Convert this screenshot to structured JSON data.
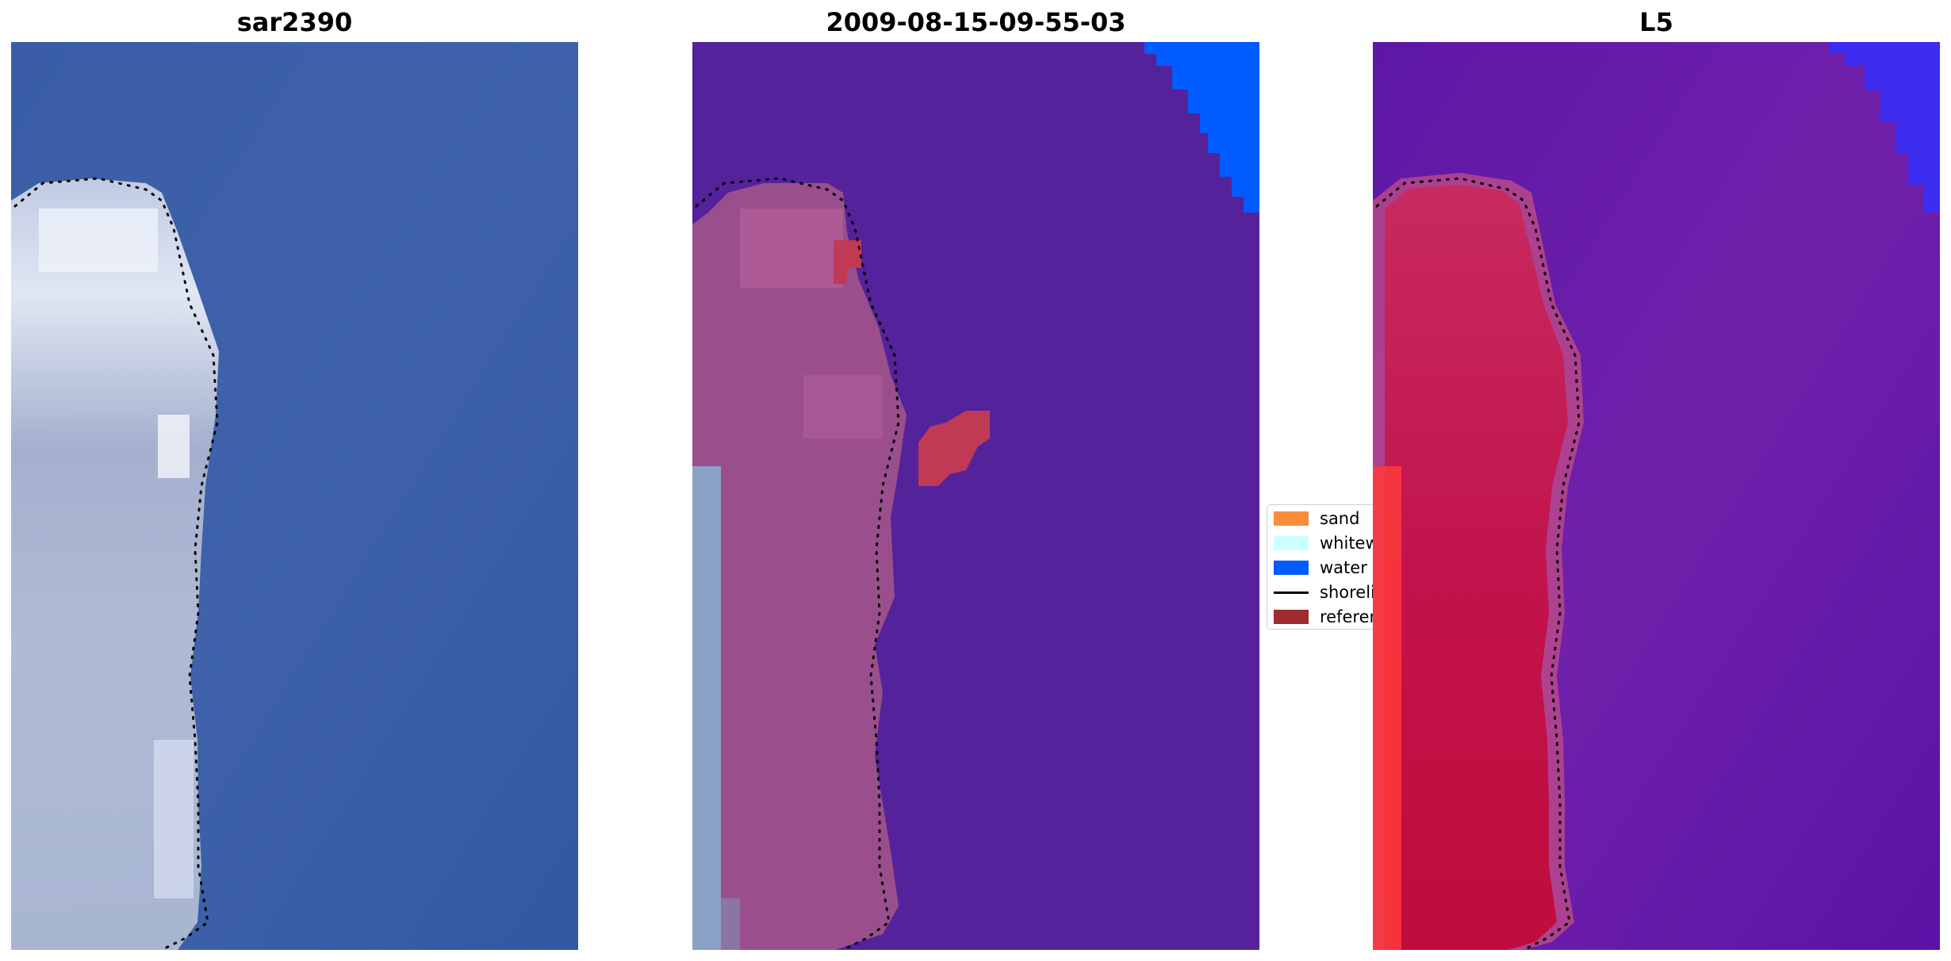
{
  "panels": [
    {
      "title": "sar2390"
    },
    {
      "title": "2009-08-15-09-55-03"
    },
    {
      "title": "L5"
    }
  ],
  "legend": {
    "items": [
      {
        "label": "sand",
        "color": "#f78d3c",
        "kind": "patch"
      },
      {
        "label": "whitewater",
        "color": "#ccffff",
        "kind": "patch"
      },
      {
        "label": "water",
        "color": "#005cff",
        "kind": "patch"
      },
      {
        "label": "shoreline",
        "color": "#000000",
        "kind": "line"
      },
      {
        "label": "reference shoreline",
        "color": "#9e2b2e",
        "kind": "patch"
      }
    ]
  },
  "colors": {
    "rgb_water": "#3b5fa6",
    "rgb_land": "#a8b4cf",
    "classified_water": "#54229a",
    "classified_land": "#9a4f8c",
    "mndwi_water": "#6b1aa8",
    "mndwi_land": "#c4164e"
  }
}
